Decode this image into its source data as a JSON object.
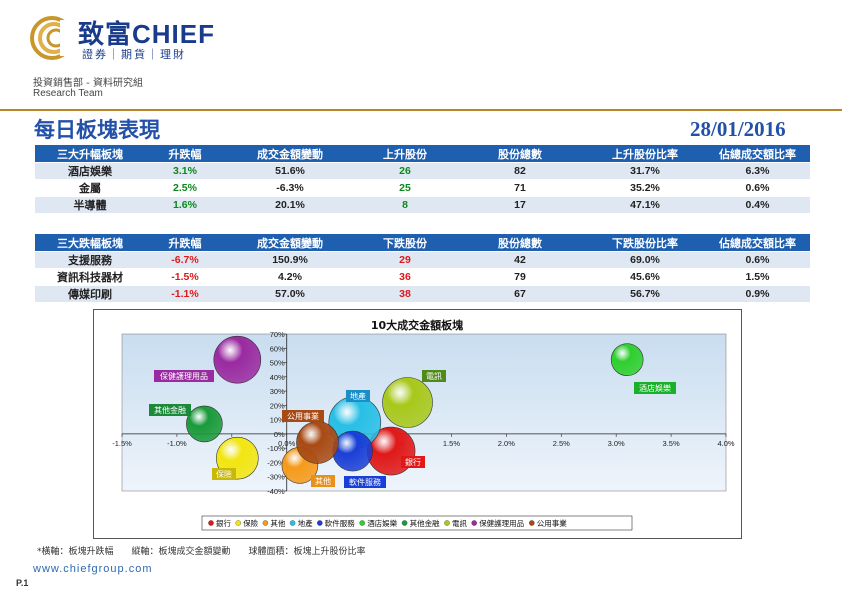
{
  "brand": {
    "name": "致富CHIEF",
    "sub": "證券｜期貨｜理財"
  },
  "dept": "投資銷售部 - 資料研究組",
  "team": "Research Team",
  "title": "每日板塊表現",
  "date": "28/01/2016",
  "colors": {
    "accent": "#2350a8",
    "header_bg": "#1f5fb0",
    "gold": "#b8862a",
    "up": "#0a8a1a",
    "down": "#e01818"
  },
  "gainers": {
    "headers": [
      "三大升幅板塊",
      "升跌幅",
      "成交金額變動",
      "上升股份",
      "股份總數",
      "上升股份比率",
      "佔總成交額比率"
    ],
    "rows": [
      [
        "酒店娛樂",
        "3.1%",
        "51.6%",
        "26",
        "82",
        "31.7%",
        "6.3%"
      ],
      [
        "金屬",
        "2.5%",
        "-6.3%",
        "25",
        "71",
        "35.2%",
        "0.6%"
      ],
      [
        "半導體",
        "1.6%",
        "20.1%",
        "8",
        "17",
        "47.1%",
        "0.4%"
      ]
    ]
  },
  "losers": {
    "headers": [
      "三大跌幅板塊",
      "升跌幅",
      "成交金額變動",
      "下跌股份",
      "股份總數",
      "下跌股份比率",
      "佔總成交額比率"
    ],
    "rows": [
      [
        "支援服務",
        "-6.7%",
        "150.9%",
        "29",
        "42",
        "69.0%",
        "0.6%"
      ],
      [
        "資訊科技器材",
        "-1.5%",
        "4.2%",
        "36",
        "79",
        "45.6%",
        "1.5%"
      ],
      [
        "傳媒印刷",
        "-1.1%",
        "57.0%",
        "38",
        "67",
        "56.7%",
        "0.9%"
      ]
    ]
  },
  "chart_data": {
    "type": "bubble",
    "title": "10大成交金額板塊",
    "xlim": [
      -1.5,
      4.0
    ],
    "ylim": [
      -40,
      70
    ],
    "x_ticks": [
      "-1.5%",
      "-1.0%",
      "-0.5%",
      "0.0%",
      "0.5%",
      "1.0%",
      "1.5%",
      "2.0%",
      "2.5%",
      "3.0%",
      "3.5%",
      "4.0%"
    ],
    "y_ticks": [
      "70%",
      "60%",
      "50%",
      "40%",
      "30%",
      "20%",
      "10%",
      "0%",
      "-10%",
      "-20%",
      "-30%",
      "-40%"
    ],
    "series": [
      {
        "name": "銀行",
        "x": 0.95,
        "y": -12,
        "size": 48,
        "color": "#e01818"
      },
      {
        "name": "保險",
        "x": -0.45,
        "y": -17,
        "size": 42,
        "color": "#f2e60f"
      },
      {
        "name": "其他",
        "x": 0.12,
        "y": -22,
        "size": 36,
        "color": "#f59a1a"
      },
      {
        "name": "地產",
        "x": 0.62,
        "y": 8,
        "size": 52,
        "color": "#28bfe6"
      },
      {
        "name": "軟件服務",
        "x": 0.6,
        "y": -12,
        "size": 40,
        "color": "#1a3fd6"
      },
      {
        "name": "酒店娛樂",
        "x": 3.1,
        "y": 52,
        "size": 32,
        "color": "#2fcf2f"
      },
      {
        "name": "其他金融",
        "x": -0.75,
        "y": 7,
        "size": 36,
        "color": "#1a9a3a"
      },
      {
        "name": "電訊",
        "x": 1.1,
        "y": 22,
        "size": 50,
        "color": "#a8c81a"
      },
      {
        "name": "保健護理用品",
        "x": -0.45,
        "y": 52,
        "size": 47,
        "color": "#9a2aa0"
      },
      {
        "name": "公用事業",
        "x": 0.28,
        "y": -6,
        "size": 42,
        "color": "#a84a14"
      }
    ],
    "labels": [
      {
        "text": "保健護理用品",
        "color": "#9a2aa0"
      },
      {
        "text": "電訊",
        "color": "#4f8a1a"
      },
      {
        "text": "地產",
        "color": "#1a8ec8"
      },
      {
        "text": "酒店娛樂",
        "color": "#1ab02a"
      },
      {
        "text": "其他金融",
        "color": "#1a8a3a"
      },
      {
        "text": "公用事業",
        "color": "#a84a14"
      },
      {
        "text": "保險",
        "color": "#c8b80a"
      },
      {
        "text": "其他",
        "color": "#e8901a"
      },
      {
        "text": "軟件服務",
        "color": "#1a3fd6"
      },
      {
        "text": "銀行",
        "color": "#e01818"
      }
    ]
  },
  "footnote": "*橫軸：板塊升跌幅　　縱軸：板塊成交金額變動　　球體面積：板塊上升股份比率",
  "website": "www.chiefgroup.com",
  "page": "P.1"
}
